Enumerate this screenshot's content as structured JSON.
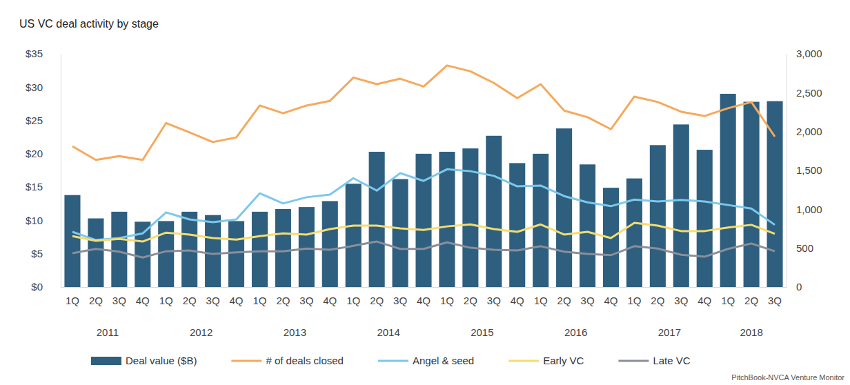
{
  "chart_data": {
    "type": "bar",
    "title": "US VC deal activity by stage",
    "source": "PitchBook-NVCA Venture Monitor",
    "categories": [
      "1Q",
      "2Q",
      "3Q",
      "4Q",
      "1Q",
      "2Q",
      "3Q",
      "4Q",
      "1Q",
      "2Q",
      "3Q",
      "4Q",
      "1Q",
      "2Q",
      "3Q",
      "4Q",
      "1Q",
      "2Q",
      "3Q",
      "4Q",
      "1Q",
      "2Q",
      "3Q",
      "4Q",
      "1Q",
      "2Q",
      "3Q",
      "4Q",
      "1Q",
      "2Q",
      "3Q"
    ],
    "groups": [
      {
        "label": "2011",
        "count": 4
      },
      {
        "label": "2012",
        "count": 4
      },
      {
        "label": "2013",
        "count": 4
      },
      {
        "label": "2014",
        "count": 4
      },
      {
        "label": "2015",
        "count": 4
      },
      {
        "label": "2016",
        "count": 4
      },
      {
        "label": "2017",
        "count": 4
      },
      {
        "label": "2018",
        "count": 3
      }
    ],
    "ylim": [
      0,
      35
    ],
    "yticks": [
      {
        "value": 0,
        "label": "$0"
      },
      {
        "value": 5,
        "label": "$5"
      },
      {
        "value": 10,
        "label": "$10"
      },
      {
        "value": 15,
        "label": "$15"
      },
      {
        "value": 20,
        "label": "$20"
      },
      {
        "value": 25,
        "label": "$25"
      },
      {
        "value": 30,
        "label": "$30"
      },
      {
        "value": 35,
        "label": "$35"
      }
    ],
    "y2lim": [
      0,
      3000
    ],
    "y2ticks": [
      0,
      500,
      {
        "value": 1000,
        "label": "1,000"
      },
      {
        "value": 1500,
        "label": "1,500"
      },
      {
        "value": 2000,
        "label": "2,000"
      },
      {
        "value": 2500,
        "label": "2,500"
      },
      {
        "value": 3000,
        "label": "3,000"
      }
    ],
    "grid": false,
    "legend": "bottom",
    "series": [
      {
        "name": "Deal value ($B)",
        "type": "bar",
        "color": "#2e5f7f",
        "values": [
          13.8,
          10.3,
          11.3,
          9.8,
          9.9,
          11.3,
          10.8,
          9.9,
          11.3,
          11.7,
          12.0,
          12.9,
          15.5,
          20.3,
          16.2,
          20.0,
          20.3,
          20.8,
          22.7,
          18.6,
          20.0,
          23.8,
          18.4,
          14.9,
          16.3,
          21.3,
          24.4,
          20.6,
          29.0,
          27.8,
          27.9
        ]
      },
      {
        "name": "# of deals closed",
        "type": "line",
        "axis": "y2",
        "color": "#f6a95b",
        "values": [
          1810,
          1635,
          1685,
          1635,
          2110,
          1990,
          1865,
          1925,
          2335,
          2235,
          2335,
          2395,
          2695,
          2610,
          2680,
          2580,
          2850,
          2775,
          2625,
          2430,
          2610,
          2270,
          2185,
          2030,
          2450,
          2380,
          2255,
          2200,
          2300,
          2380,
          1935
        ]
      },
      {
        "name": "Angel & seed",
        "type": "line",
        "axis": "y2",
        "color": "#7cc8ec",
        "values": [
          710,
          605,
          630,
          690,
          960,
          870,
          835,
          870,
          1205,
          1075,
          1155,
          1190,
          1400,
          1240,
          1465,
          1365,
          1515,
          1490,
          1430,
          1295,
          1305,
          1170,
          1090,
          1040,
          1125,
          1100,
          1120,
          1100,
          1055,
          1010,
          800
        ]
      },
      {
        "name": "Early VC",
        "type": "line",
        "axis": "y2",
        "color": "#f5dc6e",
        "values": [
          655,
          595,
          620,
          585,
          700,
          675,
          630,
          610,
          655,
          690,
          675,
          745,
          790,
          790,
          755,
          735,
          780,
          805,
          745,
          710,
          805,
          675,
          710,
          630,
          825,
          790,
          720,
          720,
          765,
          800,
          685
        ]
      },
      {
        "name": "Late VC",
        "type": "line",
        "axis": "y2",
        "color": "#8a8f99",
        "values": [
          435,
          490,
          455,
          380,
          460,
          470,
          425,
          445,
          460,
          460,
          495,
          480,
          530,
          585,
          490,
          490,
          575,
          505,
          480,
          470,
          525,
          455,
          425,
          410,
          525,
          495,
          415,
          390,
          490,
          560,
          460
        ]
      }
    ]
  }
}
